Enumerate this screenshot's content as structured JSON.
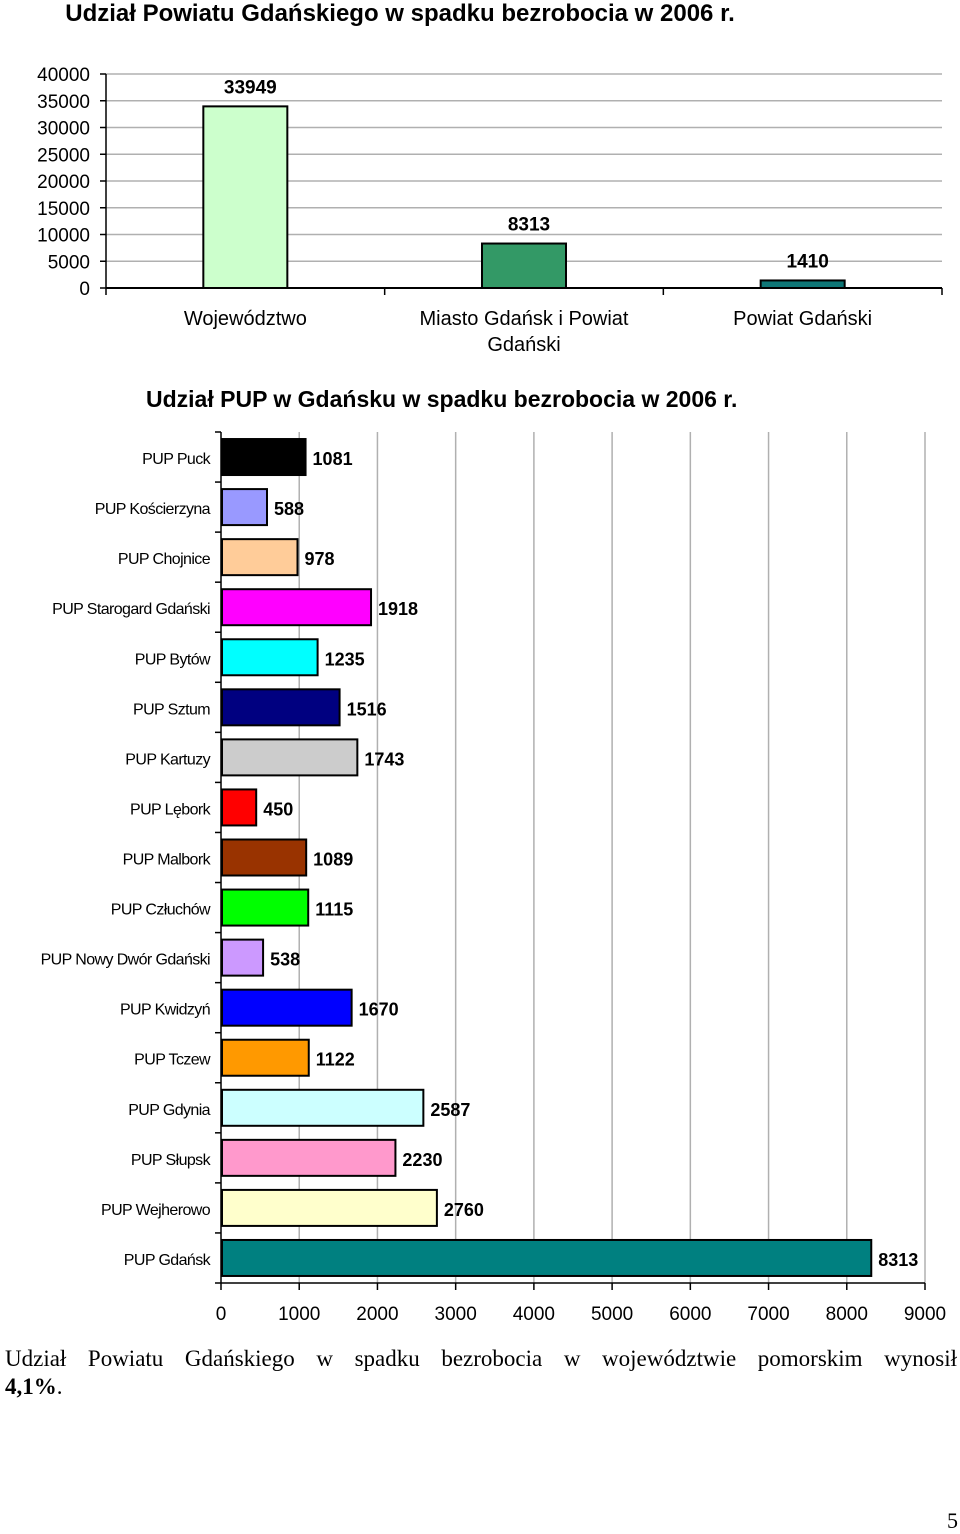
{
  "chart_data": [
    {
      "type": "bar",
      "title": "Udział Powiatu Gdańskiego w spadku bezrobocia w 2006 r.",
      "categories": [
        "Województwo",
        "Miasto Gdańsk i Powiat Gdański",
        "Powiat Gdański"
      ],
      "category_lines": [
        [
          "Województwo"
        ],
        [
          "Miasto Gdańsk i Powiat",
          "Gdański"
        ],
        [
          "Powiat Gdański"
        ]
      ],
      "values": [
        33949,
        8313,
        1410
      ],
      "colors": [
        "#ccffcc",
        "#339966",
        "#0f7777"
      ],
      "ylim": [
        0,
        40000
      ],
      "yticks": [
        0,
        5000,
        10000,
        15000,
        20000,
        25000,
        30000,
        35000,
        40000
      ],
      "grid": true,
      "xlabel": "",
      "ylabel": ""
    },
    {
      "type": "bar",
      "orientation": "horizontal",
      "title": "Udział PUP w Gdańsku w spadku bezrobocia w 2006 r.",
      "categories": [
        "PUP Puck",
        "PUP Kościerzyna",
        "PUP Chojnice",
        "PUP Starogard Gdański",
        "PUP Bytów",
        "PUP Sztum",
        "PUP Kartuzy",
        "PUP Lębork",
        "PUP Malbork",
        "PUP Człuchów",
        "PUP Nowy Dwór Gdański",
        "PUP Kwidzyń",
        "PUP Tczew",
        "PUP Gdynia",
        "PUP Słupsk",
        "PUP Wejherowo",
        "PUP Gdańsk"
      ],
      "values": [
        1081,
        588,
        978,
        1918,
        1235,
        1516,
        1743,
        450,
        1089,
        1115,
        538,
        1670,
        1122,
        2587,
        2230,
        2760,
        8313
      ],
      "colors": [
        "#000000",
        "#9999ff",
        "#ffcc99",
        "#ff00ff",
        "#00ffff",
        "#000080",
        "#cccccc",
        "#ff0000",
        "#993300",
        "#00ff00",
        "#cc99ff",
        "#0000ff",
        "#ff9900",
        "#ccffff",
        "#ff99cc",
        "#ffffcc",
        "#008080"
      ],
      "xlim": [
        0,
        9000
      ],
      "xticks": [
        0,
        1000,
        2000,
        3000,
        4000,
        5000,
        6000,
        7000,
        8000,
        9000
      ],
      "grid": true,
      "xlabel": "",
      "ylabel": ""
    }
  ],
  "text": {
    "paragraph_line1": "Udział Powiatu Gdańskiego w spadku bezrobocia w województwie pomorskim wynosił",
    "paragraph_value": "4,1%",
    "paragraph_end": ".",
    "page_number": "5"
  }
}
